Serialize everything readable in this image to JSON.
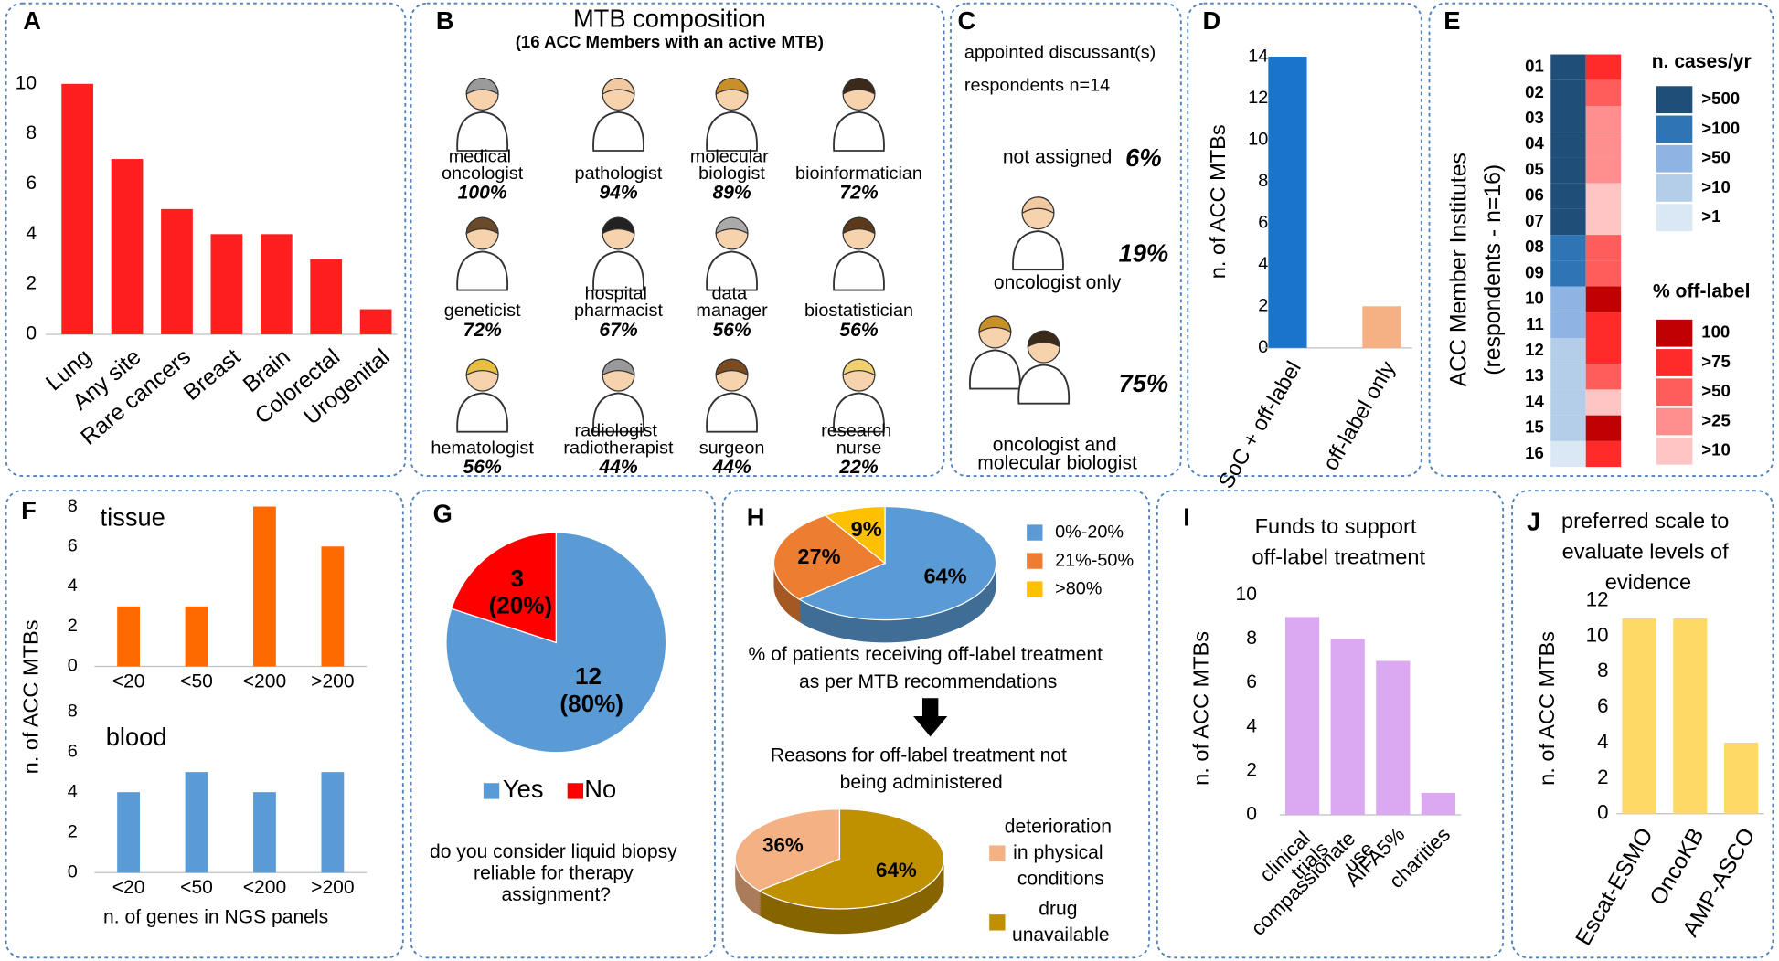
{
  "chart_data": [
    {
      "panel": "A",
      "type": "bar",
      "categories": [
        "Lung",
        "Any site",
        "Rare cancers",
        "Breast",
        "Brain",
        "Colorectal",
        "Urogenital"
      ],
      "values": [
        10,
        7,
        5,
        4,
        4,
        3,
        1
      ],
      "color": "#ff1f1f",
      "ylim": [
        0,
        10
      ],
      "yticks": [
        0,
        2,
        4,
        6,
        8,
        10
      ]
    },
    {
      "panel": "B",
      "type": "pictogram",
      "title": "MTB composition",
      "subtitle": "(16 ACC Members with an active MTB)",
      "categories": [
        "medical oncologist",
        "pathologist",
        "molecular biologist",
        "bioinformatician",
        "geneticist",
        "hospital pharmacist",
        "data manager",
        "biostatistician",
        "hematologist",
        "radiologist radiotherapist",
        "surgeon",
        "research nurse"
      ],
      "values": [
        100,
        94,
        89,
        72,
        72,
        67,
        56,
        56,
        56,
        44,
        44,
        22
      ],
      "value_labels": [
        "100%",
        "94%",
        "89%",
        "72%",
        "72%",
        "67%",
        "56%",
        "56%",
        "56%",
        "44%",
        "44%",
        "22%"
      ]
    },
    {
      "panel": "C",
      "type": "pictogram",
      "title": "appointed discussant(s)",
      "subtitle": "respondents n=14",
      "categories": [
        "not assigned",
        "oncologist only",
        "oncologist and molecular biologist"
      ],
      "values": [
        6,
        19,
        75
      ],
      "value_labels": [
        "6%",
        "19%",
        "75%"
      ]
    },
    {
      "panel": "D",
      "type": "bar",
      "ylabel": "n. of ACC MTBs",
      "categories": [
        "SoC + off-label",
        "off-label only"
      ],
      "values": [
        14,
        2
      ],
      "colors": [
        "#1a74c9",
        "#f5b183"
      ],
      "ylim": [
        0,
        14
      ],
      "yticks": [
        0,
        2,
        4,
        6,
        8,
        10,
        12,
        14
      ]
    },
    {
      "panel": "E",
      "type": "heatmap",
      "ylabel": [
        "ACC Member Institutes",
        "(respondents - n=16)"
      ],
      "categories": [
        "01",
        "02",
        "03",
        "04",
        "05",
        "06",
        "07",
        "08",
        "09",
        "10",
        "11",
        "12",
        "13",
        "14",
        "15",
        "16"
      ],
      "series": [
        {
          "name": "n. cases/yr",
          "levels": [
            ">500",
            ">100",
            ">50",
            ">10",
            ">1"
          ],
          "colors": [
            "#1f4e79",
            "#2e75b6",
            "#8eb4e3",
            "#b4cde9",
            "#dae7f5"
          ],
          "values": [
            ">500",
            ">500",
            ">500",
            ">500",
            ">500",
            ">500",
            ">500",
            ">100",
            ">100",
            ">50",
            ">50",
            ">10",
            ">10",
            ">10",
            ">10",
            ">1"
          ]
        },
        {
          "name": "% off-label",
          "levels": [
            "100",
            ">75",
            ">50",
            ">25",
            ">10"
          ],
          "colors": [
            "#c00000",
            "#ff2b2b",
            "#ff5c5c",
            "#ff8f8f",
            "#ffc4c4"
          ],
          "values": [
            ">75",
            ">50",
            ">25",
            ">25",
            ">25",
            ">10",
            ">10",
            ">50",
            ">50",
            "100",
            ">75",
            ">75",
            ">50",
            ">10",
            "100",
            ">75"
          ]
        }
      ]
    },
    {
      "panel": "F",
      "type": "bar-panels",
      "ylabel": "n. of ACC MTBs",
      "xlabel": "n. of genes in NGS panels",
      "categories": [
        "<20",
        "<50",
        "<200",
        ">200"
      ],
      "series": [
        {
          "name": "tissue",
          "color": "#ff6a00",
          "values": [
            3,
            3,
            8,
            6
          ]
        },
        {
          "name": "blood",
          "color": "#5b9bd5",
          "values": [
            4,
            5,
            4,
            5
          ]
        }
      ],
      "ylim": [
        0,
        8
      ],
      "yticks": [
        0,
        2,
        4,
        6,
        8
      ]
    },
    {
      "panel": "G",
      "type": "pie",
      "categories": [
        "Yes",
        "No"
      ],
      "values": [
        12,
        3
      ],
      "value_labels": [
        "12 (80%)",
        "3 (20%)"
      ],
      "colors": [
        "#5b9bd5",
        "#ff0000"
      ],
      "caption": "do you consider liquid biopsy reliable for therapy assignment?"
    },
    {
      "panel": "H",
      "type": "pie",
      "3d": true,
      "categories": [
        "0%-20%",
        "21%-50%",
        ">80%"
      ],
      "values": [
        64,
        27,
        9
      ],
      "value_labels": [
        "64%",
        "27%",
        "9%"
      ],
      "colors": [
        "#5b9bd5",
        "#ed7d31",
        "#ffc000"
      ],
      "caption": "% of patients receiving off-label treatment as per MTB recommendations"
    },
    {
      "type": "pie",
      "3d": true,
      "counterclock": true,
      "title": "Reasons for off-label treatment not being administered",
      "categories": [
        "deterioration in physical conditions",
        "drug unavailable"
      ],
      "values": [
        36,
        64
      ],
      "value_labels": [
        "36%",
        "64%"
      ],
      "colors": [
        "#f4b183",
        "#bf9000"
      ]
    },
    {
      "panel": "I",
      "type": "bar",
      "title": "Funds to support off-label treatment",
      "ylabel": "n. of ACC MTBs",
      "categories": [
        "clinical trials",
        "compassionate use",
        "AIFA5%",
        "charities"
      ],
      "values": [
        9,
        8,
        7,
        1
      ],
      "color": "#dba8f2",
      "ylim": [
        0,
        10
      ],
      "yticks": [
        0,
        2,
        4,
        6,
        8,
        10
      ]
    },
    {
      "panel": "J",
      "type": "bar",
      "title": "preferred scale to evaluate levels of evidence",
      "ylabel": "n. of ACC MTBs",
      "categories": [
        "Escat-ESMO",
        "OncoKB",
        "AMP-ASCO"
      ],
      "values": [
        11,
        11,
        4
      ],
      "color": "#ffd966",
      "ylim": [
        0,
        12
      ],
      "yticks": [
        0,
        2,
        4,
        6,
        8,
        10,
        12
      ]
    }
  ]
}
